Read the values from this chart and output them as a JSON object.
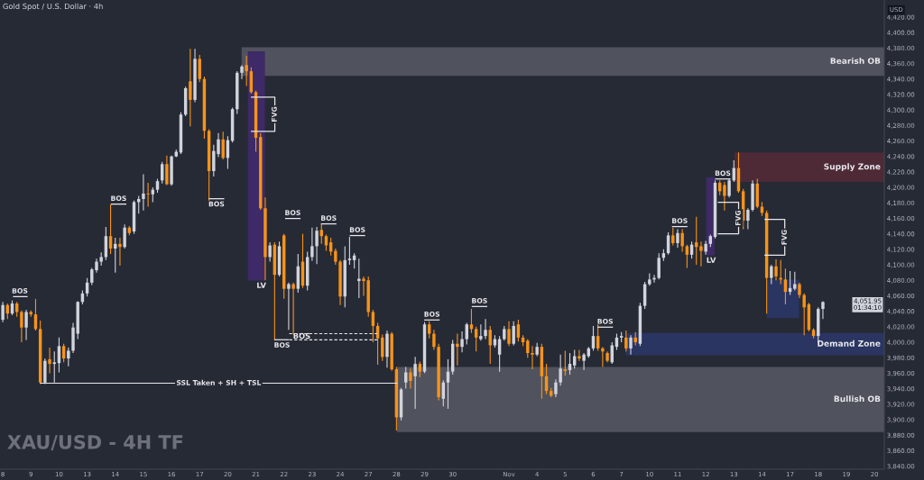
{
  "chart_data": {
    "type": "candlestick",
    "title": "Gold Spot / U.S. Dollar · 4h",
    "subtitle": "XAU/USD - 4H TF",
    "categories": [
      "8",
      null,
      null,
      null,
      null,
      null,
      "9",
      null,
      null,
      null,
      null,
      null,
      "10",
      null,
      null,
      null,
      null,
      null,
      "13",
      null,
      null,
      null,
      null,
      null,
      "14",
      null,
      null,
      null,
      null,
      null,
      "15",
      null,
      null,
      null,
      null,
      null,
      "16",
      null,
      null,
      null,
      null,
      null,
      "17",
      null,
      null,
      null,
      null,
      null,
      "20",
      null,
      null,
      null,
      null,
      null,
      "21",
      null,
      null,
      null,
      null,
      null,
      "22",
      null,
      null,
      null,
      null,
      null,
      "23",
      null,
      null,
      null,
      null,
      null,
      "24",
      null,
      null,
      null,
      null,
      null,
      "27",
      null,
      null,
      null,
      null,
      null,
      "28",
      null,
      null,
      null,
      null,
      null,
      "29",
      null,
      null,
      null,
      null,
      null,
      "30",
      null,
      null,
      null,
      null,
      null,
      null,
      null,
      null,
      null,
      null,
      null,
      "Nov",
      null,
      null,
      null,
      null,
      null,
      "4",
      null,
      null,
      null,
      null,
      null,
      "5",
      null,
      null,
      null,
      null,
      null,
      "6",
      null,
      null,
      null,
      null,
      null,
      "7",
      null,
      null,
      null,
      null,
      null,
      "10",
      null,
      null,
      null,
      null,
      null,
      "11",
      null,
      null,
      null,
      null,
      null,
      "12",
      null,
      null,
      null,
      null,
      null,
      "13",
      null,
      null,
      null,
      null,
      null,
      "14",
      null,
      null,
      null,
      null,
      null,
      "17",
      null,
      null,
      null,
      null,
      null,
      "18",
      null,
      null,
      null,
      null,
      null,
      "19",
      null,
      null,
      null,
      null,
      null,
      "20",
      null,
      null
    ],
    "ohlc": [
      [
        4029,
        4052,
        4026,
        4048
      ],
      [
        4048,
        4050,
        4030,
        4037
      ],
      [
        4037,
        4054,
        4035,
        4050
      ],
      [
        4050,
        4052,
        4033,
        4039
      ],
      [
        4039,
        4041,
        4000,
        4019
      ],
      [
        4019,
        4042,
        4003,
        4039
      ],
      [
        4039,
        4041,
        4033,
        4036
      ],
      [
        4036,
        4056,
        4015,
        4017
      ],
      [
        4017,
        4028,
        3946,
        3948
      ],
      [
        3948,
        3979,
        3946,
        3976
      ],
      [
        3978,
        3993,
        3960,
        3972
      ],
      [
        3972,
        3988,
        3948,
        3974
      ],
      [
        3973,
        4006,
        3961,
        3995
      ],
      [
        3995,
        3998,
        3974,
        3979
      ],
      [
        3979,
        3993,
        3969,
        3989
      ],
      [
        3989,
        4025,
        3986,
        4019
      ],
      [
        4011,
        4053,
        4004,
        4052
      ],
      [
        4052,
        4067,
        4049,
        4063
      ],
      [
        4063,
        4083,
        4059,
        4077
      ],
      [
        4077,
        4096,
        4074,
        4094
      ],
      [
        4093,
        4108,
        4090,
        4104
      ],
      [
        4104,
        4116,
        4099,
        4110
      ],
      [
        4110,
        4149,
        4106,
        4137
      ],
      [
        4137,
        4178,
        4114,
        4121
      ],
      [
        4121,
        4135,
        4090,
        4127
      ],
      [
        4127,
        4135,
        4099,
        4123
      ],
      [
        4123,
        4152,
        4121,
        4148
      ],
      [
        4148,
        4150,
        4138,
        4141
      ],
      [
        4143,
        4183,
        4140,
        4181
      ],
      [
        4181,
        4189,
        4166,
        4185
      ],
      [
        4185,
        4217,
        4170,
        4192
      ],
      [
        4192,
        4206,
        4175,
        4191
      ],
      [
        4191,
        4200,
        4181,
        4197
      ],
      [
        4197,
        4211,
        4193,
        4208
      ],
      [
        4209,
        4233,
        4205,
        4230
      ],
      [
        4230,
        4241,
        4203,
        4204
      ],
      [
        4204,
        4241,
        4202,
        4240
      ],
      [
        4240,
        4249,
        4239,
        4246
      ],
      [
        4245,
        4297,
        4243,
        4294
      ],
      [
        4294,
        4330,
        4292,
        4328
      ],
      [
        4337,
        4379,
        4279,
        4313
      ],
      [
        4313,
        4379,
        4310,
        4366
      ],
      [
        4366,
        4371,
        4336,
        4340
      ],
      [
        4340,
        4343,
        4263,
        4273
      ],
      [
        4273,
        4275,
        4183,
        4221
      ],
      [
        4221,
        4255,
        4214,
        4247
      ],
      [
        4243,
        4270,
        4239,
        4262
      ],
      [
        4262,
        4272,
        4236,
        4238
      ],
      [
        4238,
        4266,
        4224,
        4261
      ],
      [
        4260,
        4303,
        4258,
        4301
      ],
      [
        4301,
        4350,
        4295,
        4348
      ],
      [
        4348,
        4358,
        4340,
        4356
      ],
      [
        4358,
        4370,
        4331,
        4350
      ],
      [
        4350,
        4355,
        4321,
        4323
      ],
      [
        4323,
        4325,
        4246,
        4264
      ],
      [
        4265,
        4270,
        4171,
        4173
      ],
      [
        4173,
        4187,
        4080,
        4110
      ],
      [
        4110,
        4129,
        4104,
        4125
      ],
      [
        4126,
        4129,
        4003,
        4087
      ],
      [
        4087,
        4130,
        4085,
        4124
      ],
      [
        4138,
        4140,
        4056,
        4069
      ],
      [
        4069,
        4077,
        4016,
        4075
      ],
      [
        4075,
        4077,
        4010,
        4069
      ],
      [
        4069,
        4114,
        4064,
        4098
      ],
      [
        4104,
        4140,
        4070,
        4073
      ],
      [
        4073,
        4117,
        4067,
        4110
      ],
      [
        4110,
        4148,
        4105,
        4124
      ],
      [
        4124,
        4149,
        4101,
        4144
      ],
      [
        4145,
        4153,
        4127,
        4137
      ],
      [
        4137,
        4139,
        4118,
        4125
      ],
      [
        4129,
        4135,
        4112,
        4117
      ],
      [
        4118,
        4121,
        4100,
        4104
      ],
      [
        4104,
        4106,
        4048,
        4059
      ],
      [
        4059,
        4124,
        4045,
        4106
      ],
      [
        4106,
        4136,
        4100,
        4108
      ],
      [
        4106,
        4115,
        4095,
        4112
      ],
      [
        4079,
        4108,
        4057,
        4082
      ],
      [
        4082,
        4085,
        4060,
        4079
      ],
      [
        4080,
        4085,
        4033,
        4039
      ],
      [
        4039,
        4042,
        4000,
        4021
      ],
      [
        4021,
        4025,
        3971,
        4005
      ],
      [
        4006,
        4010,
        3976,
        3981
      ],
      [
        3981,
        4015,
        3967,
        4011
      ],
      [
        4011,
        4013,
        3963,
        3965
      ],
      [
        3965,
        3968,
        3886,
        3903
      ],
      [
        3903,
        3941,
        3899,
        3939
      ],
      [
        3948,
        3968,
        3940,
        3961
      ],
      [
        3961,
        3966,
        3940,
        3950
      ],
      [
        3956,
        3981,
        3914,
        3972
      ],
      [
        3972,
        3975,
        3955,
        3962
      ],
      [
        3962,
        4026,
        3960,
        4023
      ],
      [
        4023,
        4027,
        4005,
        4011
      ],
      [
        4011,
        4016,
        3990,
        3994
      ],
      [
        3994,
        3998,
        3925,
        3929
      ],
      [
        3927,
        3951,
        3917,
        3948
      ],
      [
        3948,
        3978,
        3914,
        3962
      ],
      [
        3962,
        4003,
        3958,
        3998
      ],
      [
        3998,
        4011,
        3970,
        3994
      ],
      [
        3994,
        4014,
        3987,
        4004
      ],
      [
        4004,
        4025,
        3997,
        4023
      ],
      [
        4023,
        4043,
        4012,
        4017
      ],
      [
        4017,
        4020,
        3988,
        4006
      ],
      [
        4004,
        4023,
        4002,
        4008
      ],
      [
        4008,
        4030,
        4004,
        4016
      ],
      [
        4016,
        4021,
        3972,
        3996
      ],
      [
        3996,
        4009,
        3993,
        4004
      ],
      [
        3984,
        4008,
        3962,
        4004
      ],
      [
        4004,
        4021,
        4002,
        4017
      ],
      [
        4017,
        4027,
        3995,
        3998
      ],
      [
        3998,
        4027,
        3996,
        4021
      ],
      [
        4023,
        4029,
        4001,
        4006
      ],
      [
        4006,
        4009,
        3995,
        4000
      ],
      [
        4002,
        4004,
        3980,
        3986
      ],
      [
        3986,
        3995,
        3965,
        3984
      ],
      [
        3984,
        3999,
        3982,
        3994
      ],
      [
        3994,
        3998,
        3927,
        3956
      ],
      [
        3956,
        3972,
        3933,
        3937
      ],
      [
        3937,
        3941,
        3929,
        3931
      ],
      [
        3933,
        3952,
        3929,
        3948
      ],
      [
        3948,
        3984,
        3944,
        3966
      ],
      [
        3965,
        3989,
        3957,
        3963
      ],
      [
        3964,
        3986,
        3958,
        3972
      ],
      [
        3970,
        3990,
        3966,
        3982
      ],
      [
        3982,
        3990,
        3976,
        3979
      ],
      [
        3976,
        3986,
        3964,
        3984
      ],
      [
        3982,
        3994,
        3980,
        3992
      ],
      [
        3992,
        4021,
        3989,
        4008
      ],
      [
        4008,
        4023,
        3989,
        3992
      ],
      [
        3992,
        3994,
        3968,
        3988
      ],
      [
        3986,
        3988,
        3974,
        3976
      ],
      [
        3974,
        4000,
        3972,
        3996
      ],
      [
        3994,
        4011,
        3990,
        4006
      ],
      [
        4006,
        4013,
        4000,
        4008
      ],
      [
        4006,
        4015,
        3988,
        3992
      ],
      [
        3992,
        4009,
        3984,
        4006
      ],
      [
        4006,
        4013,
        3996,
        4000
      ],
      [
        3998,
        4051,
        3995,
        4047
      ],
      [
        4047,
        4078,
        4043,
        4075
      ],
      [
        4075,
        4089,
        4073,
        4081
      ],
      [
        4081,
        4087,
        4077,
        4083
      ],
      [
        4083,
        4115,
        4081,
        4109
      ],
      [
        4109,
        4120,
        4105,
        4115
      ],
      [
        4115,
        4142,
        4113,
        4138
      ],
      [
        4138,
        4148,
        4125,
        4128
      ],
      [
        4128,
        4146,
        4122,
        4141
      ],
      [
        4141,
        4146,
        4117,
        4124
      ],
      [
        4124,
        4126,
        4096,
        4113
      ],
      [
        4113,
        4130,
        4108,
        4126
      ],
      [
        4129,
        4162,
        4100,
        4123
      ],
      [
        4124,
        4130,
        4098,
        4118
      ],
      [
        4117,
        4131,
        4113,
        4127
      ],
      [
        4127,
        4139,
        4123,
        4137
      ],
      [
        4136,
        4209,
        4134,
        4206
      ],
      [
        4206,
        4209,
        4190,
        4195
      ],
      [
        4203,
        4207,
        4170,
        4189
      ],
      [
        4189,
        4211,
        4187,
        4209
      ],
      [
        4209,
        4235,
        4207,
        4225
      ],
      [
        4225,
        4245,
        4193,
        4195
      ],
      [
        4195,
        4198,
        4146,
        4157
      ],
      [
        4157,
        4173,
        4146,
        4171
      ],
      [
        4171,
        4209,
        4169,
        4205
      ],
      [
        4205,
        4211,
        4173,
        4175
      ],
      [
        4175,
        4181,
        4163,
        4167
      ],
      [
        4167,
        4170,
        4037,
        4083
      ],
      [
        4083,
        4100,
        4075,
        4098
      ],
      [
        4098,
        4107,
        4080,
        4085
      ],
      [
        4083,
        4106,
        4075,
        4081
      ],
      [
        4081,
        4095,
        4049,
        4065
      ],
      [
        4065,
        4092,
        4061,
        4070
      ],
      [
        4069,
        4091,
        4067,
        4075
      ],
      [
        4075,
        4077,
        4057,
        4061
      ],
      [
        4061,
        4063,
        4009,
        4045
      ],
      [
        4049,
        4051,
        4014,
        4016
      ],
      [
        4016,
        4018,
        4005,
        4008
      ],
      [
        4008,
        4045,
        3999,
        4043
      ],
      [
        4043,
        4053,
        4030,
        4051.95
      ],
      null,
      null,
      null,
      null,
      null,
      null,
      null,
      null,
      null,
      null,
      null,
      null,
      null
    ],
    "colors": [
      "#d1d4dc",
      "#f7931a",
      "#d1d4dc",
      "#f7931a",
      "#f7931a",
      "#d1d4dc",
      "#f7931a",
      "#f7931a",
      "#f7931a",
      "#d1d4dc",
      "#f7931a",
      "#d1d4dc",
      "#d1d4dc",
      "#f7931a",
      "#d1d4dc",
      "#d1d4dc",
      "#d1d4dc",
      "#d1d4dc",
      "#d1d4dc",
      "#d1d4dc",
      "#d1d4dc",
      "#d1d4dc",
      "#d1d4dc",
      "#f7931a",
      "#d1d4dc",
      "#f7931a",
      "#d1d4dc",
      "#f7931a",
      "#d1d4dc",
      "#d1d4dc",
      "#d1d4dc",
      "#f7931a",
      "#d1d4dc",
      "#d1d4dc",
      "#d1d4dc",
      "#f7931a",
      "#d1d4dc",
      "#d1d4dc",
      "#d1d4dc",
      "#d1d4dc",
      "#f7931a",
      "#d1d4dc",
      "#f7931a",
      "#f7931a",
      "#f7931a",
      "#d1d4dc",
      "#d1d4dc",
      "#f7931a",
      "#d1d4dc",
      "#d1d4dc",
      "#d1d4dc",
      "#d1d4dc",
      "#f7931a",
      "#f7931a",
      "#f7931a",
      "#f7931a",
      "#f7931a",
      "#d1d4dc",
      "#f7931a",
      "#d1d4dc",
      "#f7931a",
      "#d1d4dc",
      "#f7931a",
      "#d1d4dc",
      "#f7931a",
      "#d1d4dc",
      "#d1d4dc",
      "#d1d4dc",
      "#f7931a",
      "#f7931a",
      "#f7931a",
      "#f7931a",
      "#f7931a",
      "#d1d4dc",
      "#d1d4dc",
      "#d1d4dc",
      "#d1d4dc",
      "#f7931a",
      "#f7931a",
      "#f7931a",
      "#f7931a",
      "#f7931a",
      "#d1d4dc",
      "#f7931a",
      "#f7931a",
      "#d1d4dc",
      "#d1d4dc",
      "#f7931a",
      "#d1d4dc",
      "#f7931a",
      "#d1d4dc",
      "#f7931a",
      "#f7931a",
      "#f7931a",
      "#d1d4dc",
      "#d1d4dc",
      "#d1d4dc",
      "#f7931a",
      "#d1d4dc",
      "#d1d4dc",
      "#f7931a",
      "#f7931a",
      "#d1d4dc",
      "#d1d4dc",
      "#f7931a",
      "#d1d4dc",
      "#d1d4dc",
      "#d1d4dc",
      "#f7931a",
      "#d1d4dc",
      "#f7931a",
      "#f7931a",
      "#f7931a",
      "#f7931a",
      "#d1d4dc",
      "#f7931a",
      "#f7931a",
      "#f7931a",
      "#d1d4dc",
      "#d1d4dc",
      "#f7931a",
      "#d1d4dc",
      "#d1d4dc",
      "#f7931a",
      "#d1d4dc",
      "#d1d4dc",
      "#d1d4dc",
      "#f7931a",
      "#f7931a",
      "#f7931a",
      "#d1d4dc",
      "#d1d4dc",
      "#d1d4dc",
      "#f7931a",
      "#d1d4dc",
      "#f7931a",
      "#d1d4dc",
      "#d1d4dc",
      "#d1d4dc",
      "#d1d4dc",
      "#d1d4dc",
      "#d1d4dc",
      "#d1d4dc",
      "#f7931a",
      "#d1d4dc",
      "#f7931a",
      "#f7931a",
      "#d1d4dc",
      "#f7931a",
      "#f7931a",
      "#d1d4dc",
      "#d1d4dc",
      "#d1d4dc",
      "#f7931a",
      "#f7931a",
      "#d1d4dc",
      "#d1d4dc",
      "#f7931a",
      "#f7931a",
      "#d1d4dc",
      "#d1d4dc",
      "#f7931a",
      "#f7931a",
      "#f7931a",
      "#d1d4dc",
      "#f7931a",
      "#f7931a",
      "#f7931a",
      "#d1d4dc",
      "#d1d4dc",
      "#f7931a",
      "#f7931a",
      "#f7931a",
      "#f7931a",
      "#d1d4dc",
      "#d1d4dc",
      null,
      null,
      null,
      null,
      null,
      null,
      null,
      null,
      null,
      null,
      null,
      null,
      null
    ],
    "ylim": [
      3836,
      4442
    ],
    "yticks": [
      {
        "value": 3840,
        "label": "3,840.00"
      },
      {
        "value": 3860,
        "label": "3,860.00"
      },
      {
        "value": 3880,
        "label": "3,880.00"
      },
      {
        "value": 3900,
        "label": "3,900.00"
      },
      {
        "value": 3920,
        "label": "3,920.00"
      },
      {
        "value": 3940,
        "label": "3,940.00"
      },
      {
        "value": 3960,
        "label": "3,960.00"
      },
      {
        "value": 3980,
        "label": "3,980.00"
      },
      {
        "value": 4000,
        "label": "4,000.00"
      },
      {
        "value": 4020,
        "label": "4,020.00"
      },
      {
        "value": 4040,
        "label": "4,040.00"
      },
      {
        "value": 4060,
        "label": "4,060.00"
      },
      {
        "value": 4080,
        "label": "4,080.00"
      },
      {
        "value": 4100,
        "label": "4,100.00"
      },
      {
        "value": 4120,
        "label": "4,120.00"
      },
      {
        "value": 4140,
        "label": "4,140.00"
      },
      {
        "value": 4160,
        "label": "4,160.00"
      },
      {
        "value": 4180,
        "label": "4,180.00"
      },
      {
        "value": 4200,
        "label": "4,200.00"
      },
      {
        "value": 4220,
        "label": "4,220.00"
      },
      {
        "value": 4240,
        "label": "4,240.00"
      },
      {
        "value": 4260,
        "label": "4,260.00"
      },
      {
        "value": 4280,
        "label": "4,280.00"
      },
      {
        "value": 4300,
        "label": "4,300.00"
      },
      {
        "value": 4320,
        "label": "4,320.00"
      },
      {
        "value": 4340,
        "label": "4,340.00"
      },
      {
        "value": 4360,
        "label": "4,360.00"
      },
      {
        "value": 4380,
        "label": "4,380.00"
      },
      {
        "value": 4400,
        "label": "4,400.00"
      },
      {
        "value": 4420,
        "label": "4,420.00"
      }
    ],
    "bands": [
      {
        "axis": "y",
        "from": 4344,
        "to": 4381,
        "color": "#50535e",
        "label": "Bearish OB"
      },
      {
        "axis": "y",
        "from": 4207,
        "to": 4245,
        "color": "#4d2a36",
        "label": "Supply Zone"
      },
      {
        "axis": "y",
        "from": 3983,
        "to": 4012,
        "color": "#2a3562",
        "label": "Demand Zone"
      },
      {
        "axis": "y",
        "from": 3884,
        "to": 3968,
        "color": "#50535e",
        "label": "Bullish OB"
      }
    ],
    "ref_lines": [
      {
        "axis": "y",
        "value": 3947,
        "label": "SSL Taken + SH + TSL",
        "color": "#e8e8ec",
        "line_style": "solid"
      },
      {
        "axis": "y",
        "value": 4011,
        "color": "#e8e8ec",
        "line_style": "dashed"
      },
      {
        "axis": "y",
        "value": 4003,
        "color": "#e8e8ec",
        "line_style": "dashed"
      }
    ],
    "annotations": [
      "BOS",
      "BOS",
      "BOS",
      "BOS",
      "BOS",
      "BOS",
      "BOS",
      "BOS",
      "BOS",
      "BOS",
      "BOS",
      "BOS",
      "BOS",
      "FVG",
      "FVG",
      "FVG",
      "LV",
      "LV",
      "4,051.95\n01:34:10",
      "USD"
    ]
  }
}
